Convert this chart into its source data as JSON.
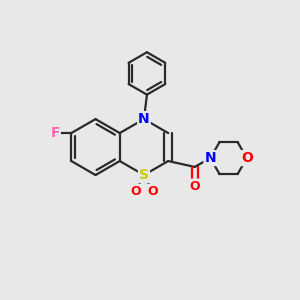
{
  "background_color": "#e8e8e8",
  "bond_color": "#2a2a2a",
  "atom_colors": {
    "N": "#0000ff",
    "O": "#ff0000",
    "S": "#cccc00",
    "F": "#ff69b4",
    "C": "#2a2a2a"
  },
  "figsize": [
    3.0,
    3.0
  ],
  "dpi": 100
}
